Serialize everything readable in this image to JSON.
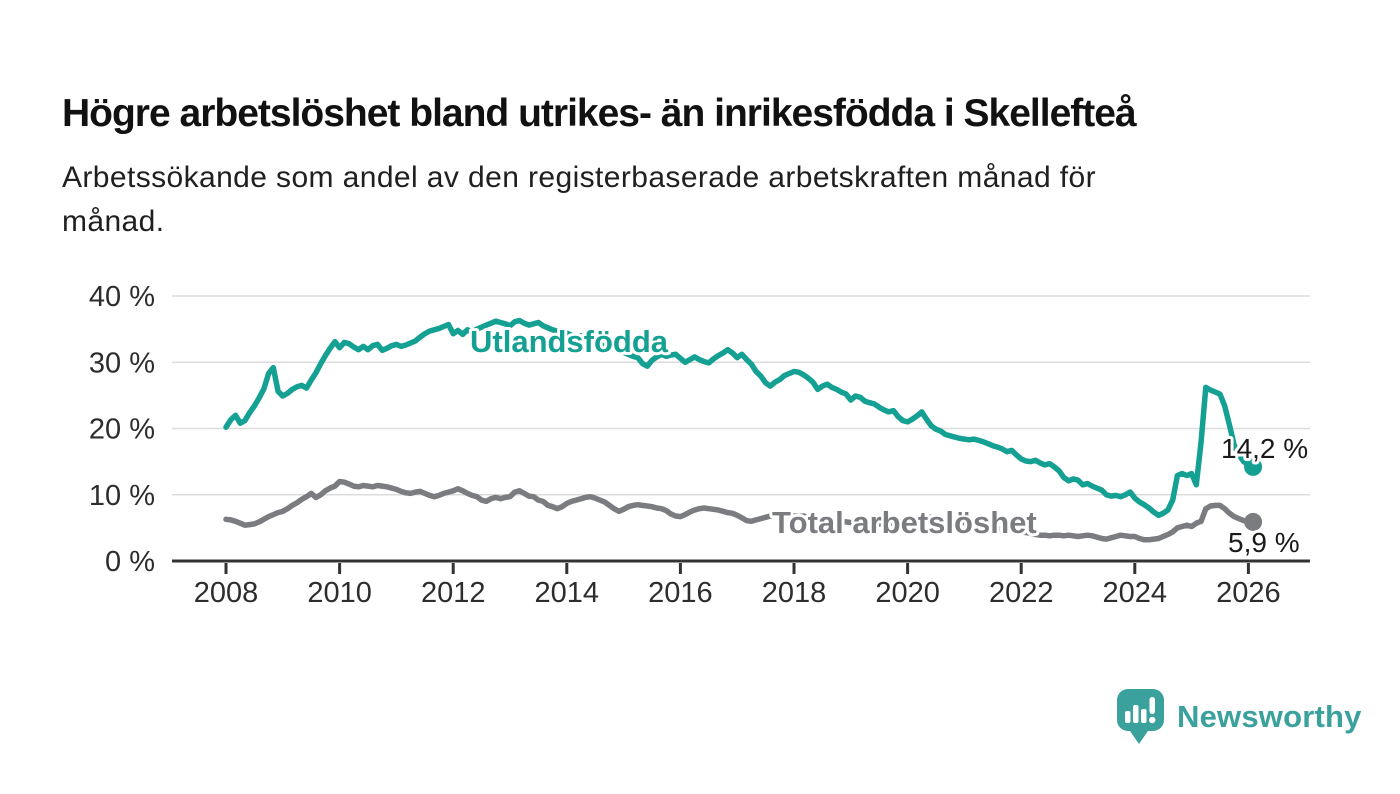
{
  "title": "Högre arbetslöshet bland utrikes- än inrikesfödda i Skellefteå",
  "subtitle_lines": [
    "Arbetssökande som andel av den registerbaserade arbetskraften månad för",
    "månad."
  ],
  "branding": {
    "logo_text": "Newsworthy",
    "logo_icon": "newsworthy-speech-bubble-bar-chart-icon"
  },
  "colors": {
    "teal": "#14a092",
    "gray": "#7b7c80",
    "axis": "#333333",
    "grid": "#dcdcdc",
    "tick_text": "#2d2d2d",
    "value_text": "#1a1a1a",
    "logo_teal": "#3ba19c"
  },
  "chart_data": {
    "type": "line",
    "title": "Högre arbetslöshet bland utrikes- än inrikesfödda i Skellefteå",
    "xlabel": "",
    "ylabel": "",
    "x_unit": "month",
    "x_start": "2008-01",
    "x_end": "2026-02",
    "ylim": [
      0,
      42
    ],
    "grid": "horizontal",
    "legend_position": "inline-labels",
    "x_ticks": [
      2008,
      2010,
      2012,
      2014,
      2016,
      2018,
      2020,
      2022,
      2024,
      2026
    ],
    "y_ticks": [
      {
        "value": 0,
        "label": "0 %"
      },
      {
        "value": 10,
        "label": "10 %"
      },
      {
        "value": 20,
        "label": "20 %"
      },
      {
        "value": 30,
        "label": "30 %"
      },
      {
        "value": 40,
        "label": "40 %"
      }
    ],
    "series": [
      {
        "name": "Utlandsfödda",
        "color": "#14a092",
        "end_label": "14,2 %",
        "end_value": 14.2,
        "values": [
          20.2,
          21.3,
          22.0,
          20.8,
          21.2,
          22.4,
          23.4,
          24.6,
          26.0,
          28.3,
          29.2,
          25.6,
          24.9,
          25.3,
          25.9,
          26.3,
          26.5,
          26.1,
          27.3,
          28.4,
          29.8,
          31.0,
          32.1,
          33.1,
          32.2,
          33.0,
          32.8,
          32.3,
          31.9,
          32.4,
          31.9,
          32.5,
          32.7,
          31.8,
          32.1,
          32.5,
          32.7,
          32.4,
          32.6,
          32.9,
          33.2,
          33.8,
          34.3,
          34.7,
          34.9,
          35.1,
          35.4,
          35.7,
          34.3,
          34.8,
          34.2,
          34.9,
          34.6,
          35.0,
          35.3,
          35.6,
          35.9,
          36.2,
          36.0,
          35.8,
          35.5,
          36.1,
          36.3,
          35.9,
          35.6,
          35.8,
          36.0,
          35.5,
          35.2,
          34.9,
          34.7,
          34.8,
          34.4,
          34.1,
          33.8,
          34.0,
          33.6,
          33.3,
          33.0,
          32.7,
          32.4,
          32.2,
          32.0,
          31.8,
          31.5,
          31.2,
          30.9,
          30.7,
          29.8,
          29.4,
          30.3,
          30.8,
          31.2,
          30.9,
          31.1,
          31.2,
          30.6,
          30.0,
          30.4,
          30.8,
          30.4,
          30.1,
          29.9,
          30.5,
          31.0,
          31.4,
          31.9,
          31.4,
          30.7,
          31.2,
          30.4,
          29.7,
          28.6,
          27.9,
          26.9,
          26.4,
          27.0,
          27.4,
          28.0,
          28.3,
          28.6,
          28.5,
          28.1,
          27.6,
          27.0,
          25.9,
          26.4,
          26.7,
          26.2,
          25.9,
          25.5,
          25.2,
          24.3,
          24.9,
          24.7,
          24.1,
          23.9,
          23.7,
          23.2,
          22.8,
          22.5,
          22.7,
          21.8,
          21.2,
          21.0,
          21.4,
          21.9,
          22.5,
          21.4,
          20.4,
          19.9,
          19.6,
          19.1,
          18.9,
          18.7,
          18.5,
          18.4,
          18.3,
          18.4,
          18.2,
          18.0,
          17.7,
          17.4,
          17.2,
          16.9,
          16.5,
          16.7,
          16.0,
          15.4,
          15.1,
          15.0,
          15.2,
          14.8,
          14.5,
          14.7,
          14.2,
          13.6,
          12.6,
          12.1,
          12.4,
          12.2,
          11.5,
          11.7,
          11.3,
          11.0,
          10.7,
          10.0,
          9.8,
          9.9,
          9.7,
          10.0,
          10.4,
          9.5,
          8.9,
          8.5,
          8.0,
          7.4,
          6.9,
          7.2,
          7.7,
          9.2,
          12.9,
          13.2,
          12.9,
          13.2,
          11.5,
          18.0,
          26.2,
          25.8,
          25.5,
          25.2,
          23.4,
          20.5,
          17.5,
          16.0,
          15.0,
          14.5,
          14.2
        ]
      },
      {
        "name": "Total arbetslöshet",
        "color": "#7b7c80",
        "end_label": "5,9 %",
        "end_value": 5.9,
        "values": [
          6.3,
          6.2,
          6.0,
          5.7,
          5.4,
          5.5,
          5.6,
          5.9,
          6.3,
          6.7,
          7.0,
          7.3,
          7.5,
          7.9,
          8.4,
          8.8,
          9.3,
          9.7,
          10.2,
          9.6,
          10.0,
          10.6,
          11.0,
          11.3,
          12.0,
          11.9,
          11.6,
          11.3,
          11.2,
          11.4,
          11.3,
          11.2,
          11.4,
          11.3,
          11.2,
          11.0,
          10.8,
          10.5,
          10.3,
          10.2,
          10.4,
          10.5,
          10.2,
          9.9,
          9.7,
          9.9,
          10.2,
          10.4,
          10.6,
          10.9,
          10.6,
          10.2,
          9.9,
          9.7,
          9.2,
          9.0,
          9.4,
          9.6,
          9.4,
          9.6,
          9.7,
          10.4,
          10.6,
          10.2,
          9.8,
          9.7,
          9.2,
          9.0,
          8.4,
          8.2,
          7.9,
          8.2,
          8.7,
          9.0,
          9.2,
          9.4,
          9.6,
          9.7,
          9.5,
          9.2,
          8.9,
          8.4,
          7.9,
          7.5,
          7.8,
          8.2,
          8.4,
          8.5,
          8.4,
          8.3,
          8.2,
          8.0,
          7.9,
          7.6,
          7.1,
          6.8,
          6.7,
          7.0,
          7.4,
          7.7,
          7.9,
          8.0,
          7.9,
          7.8,
          7.7,
          7.5,
          7.3,
          7.2,
          6.9,
          6.5,
          6.1,
          6.0,
          6.2,
          6.4,
          6.6,
          6.8,
          6.9,
          7.0,
          6.9,
          6.8,
          6.8,
          6.7,
          6.8,
          6.6,
          6.5,
          6.4,
          6.3,
          6.2,
          6.1,
          6.0,
          5.9,
          5.9,
          5.8,
          5.7,
          5.6,
          5.6,
          5.5,
          5.5,
          5.6,
          5.6,
          5.7,
          5.7,
          5.8,
          5.9,
          5.9,
          5.9,
          6.1,
          6.5,
          6.6,
          6.6,
          6.5,
          6.4,
          6.2,
          6.1,
          6.0,
          5.9,
          5.8,
          5.7,
          5.6,
          5.4,
          5.3,
          5.1,
          5.0,
          4.9,
          4.8,
          4.7,
          4.6,
          4.5,
          4.4,
          4.3,
          4.2,
          4.0,
          3.9,
          3.9,
          3.8,
          3.9,
          3.9,
          3.8,
          3.9,
          3.8,
          3.7,
          3.8,
          3.9,
          3.8,
          3.6,
          3.4,
          3.3,
          3.5,
          3.7,
          3.9,
          3.8,
          3.7,
          3.7,
          3.4,
          3.2,
          3.2,
          3.3,
          3.4,
          3.7,
          4.0,
          4.4,
          5.0,
          5.2,
          5.4,
          5.2,
          5.7,
          6.0,
          7.9,
          8.3,
          8.4,
          8.4,
          7.9,
          7.2,
          6.7,
          6.4,
          6.1,
          6.0,
          5.9
        ]
      }
    ]
  }
}
